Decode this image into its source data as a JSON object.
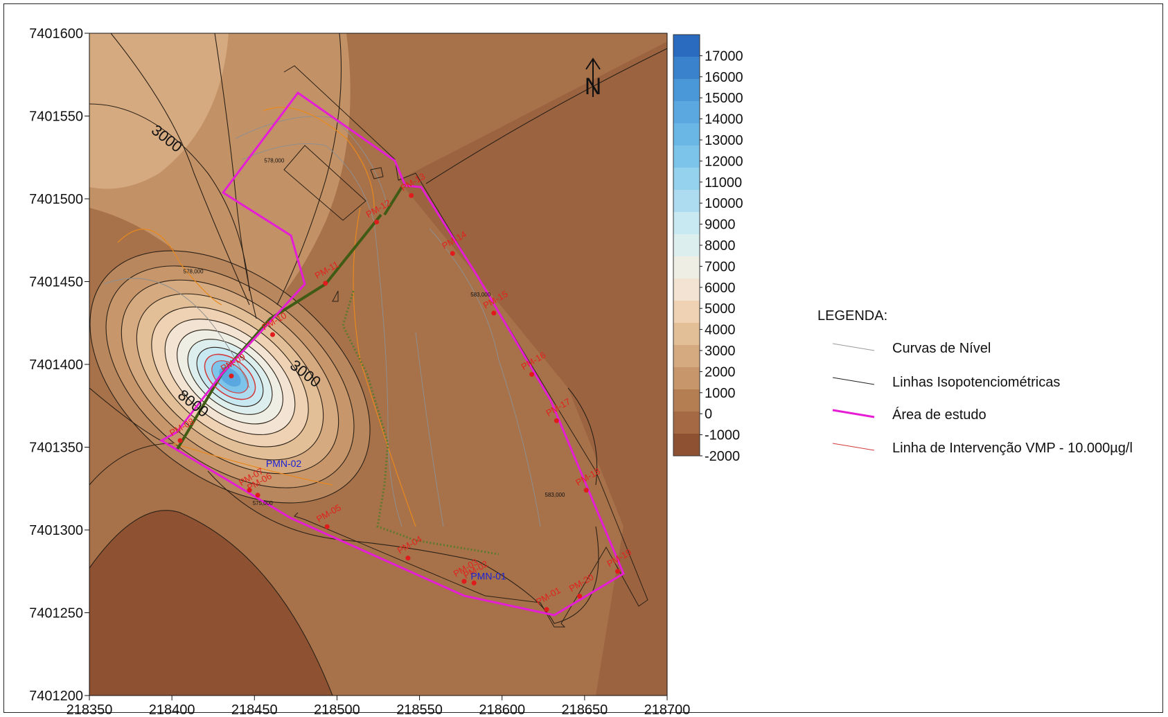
{
  "map": {
    "x_axis": {
      "min": 218350,
      "max": 218700,
      "ticks": [
        "218350",
        "218400",
        "218450",
        "218500",
        "218550",
        "218600",
        "218650",
        "218700"
      ]
    },
    "y_axis": {
      "min": 7401200,
      "max": 7401600,
      "ticks": [
        "7401600",
        "7401550",
        "7401500",
        "7401450",
        "7401400",
        "7401350",
        "7401300",
        "7401250",
        "7401200"
      ]
    },
    "north_arrow_letter": "N",
    "contour_labels": [
      {
        "text": "3000",
        "x": 218395,
        "y": 7401534
      },
      {
        "text": "3000",
        "x": 218479,
        "y": 7401392
      },
      {
        "text": "8000",
        "x": 218411,
        "y": 7401374
      }
    ],
    "elevation_labels": [
      {
        "text": "578,000",
        "x": 218462,
        "y": 7401522
      },
      {
        "text": "583,000",
        "x": 218587,
        "y": 7401441
      },
      {
        "text": "583,000",
        "x": 218632,
        "y": 7401320
      },
      {
        "text": "575,000",
        "x": 218455,
        "y": 7401315
      },
      {
        "text": "578,000",
        "x": 218413,
        "y": 7401455
      }
    ],
    "wells": [
      {
        "label": "PM-01",
        "x": 218627,
        "y": 7401252
      },
      {
        "label": "PM-02",
        "x": 218583,
        "y": 7401268
      },
      {
        "label": "PM-03",
        "x": 218577,
        "y": 7401269
      },
      {
        "label": "PM-04",
        "x": 218543,
        "y": 7401283
      },
      {
        "label": "PM-05",
        "x": 218494,
        "y": 7401302
      },
      {
        "label": "PM-06",
        "x": 218452,
        "y": 7401321
      },
      {
        "label": "PM-07",
        "x": 218447,
        "y": 7401324
      },
      {
        "label": "PM-08",
        "x": 218405,
        "y": 7401354
      },
      {
        "label": "PM-09",
        "x": 218436,
        "y": 7401393
      },
      {
        "label": "PM-10",
        "x": 218461,
        "y": 7401418
      },
      {
        "label": "PM-11",
        "x": 218493,
        "y": 7401449
      },
      {
        "label": "PM-12",
        "x": 218524,
        "y": 7401486
      },
      {
        "label": "PM-13",
        "x": 218545,
        "y": 7401502
      },
      {
        "label": "PM-14",
        "x": 218570,
        "y": 7401467
      },
      {
        "label": "PM-15",
        "x": 218595,
        "y": 7401431
      },
      {
        "label": "PM-16",
        "x": 218618,
        "y": 7401394
      },
      {
        "label": "PM-17",
        "x": 218633,
        "y": 7401366
      },
      {
        "label": "PM-18",
        "x": 218651,
        "y": 7401324
      },
      {
        "label": "PM-19",
        "x": 218670,
        "y": 7401275
      },
      {
        "label": "PM-20",
        "x": 218647,
        "y": 7401260
      }
    ],
    "pmn_wells": [
      {
        "label": "PMN-01",
        "x": 218586,
        "y": 7401270
      },
      {
        "label": "PMN-02",
        "x": 218462,
        "y": 7401338
      }
    ]
  },
  "colorbar": {
    "labels": [
      "17000",
      "16000",
      "15000",
      "14000",
      "13000",
      "12000",
      "11000",
      "10000",
      "9000",
      "8000",
      "7000",
      "6000",
      "5000",
      "4000",
      "3000",
      "2000",
      "1000",
      "0",
      "-1000",
      "-2000"
    ],
    "colors": [
      "#2a6bbf",
      "#3a82cc",
      "#4b98d8",
      "#5aa8df",
      "#6ab6e4",
      "#7cc4ea",
      "#95d2ee",
      "#addcf0",
      "#c8e8f2",
      "#dcefee",
      "#eeeee4",
      "#f3e3d2",
      "#eed2b3",
      "#e3bf98",
      "#d6aa80",
      "#c7966a",
      "#b47d52",
      "#a56a44",
      "#8e5232"
    ],
    "min": -2000,
    "max": 18000
  },
  "legend": {
    "title": "LEGENDA:",
    "items": [
      {
        "label": "Curvas de Nível",
        "color": "#999999"
      },
      {
        "label": "Linhas Isopotenciométricas",
        "color": "#222222"
      },
      {
        "label": "Área de estudo",
        "color": "#e51ed6"
      },
      {
        "label": "Linha de Intervenção VMP - 10.000µg/l",
        "color": "#d23b3b"
      }
    ]
  },
  "colors": {
    "background": "#a7714a",
    "dark": "#8e5232",
    "study_area": "#e51ed6",
    "trench": "#3f5b14",
    "well_dot": "#e01b1b"
  }
}
